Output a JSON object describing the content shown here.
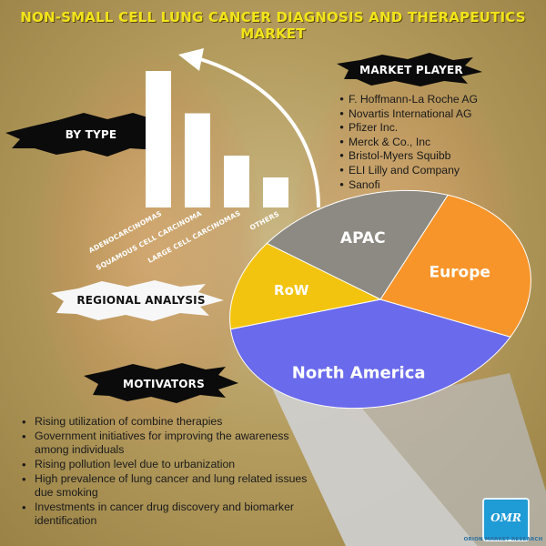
{
  "title": "NON-SMALL CELL LUNG CANCER DIAGNOSIS AND THERAPEUTICS MARKET",
  "sections": {
    "by_type": "BY TYPE",
    "market_player": "MARKET PLAYER",
    "regional_analysis": "REGIONAL ANALYSIS",
    "motivators": "MOTIVATORS"
  },
  "market_players": [
    "F. Hoffmann-La Roche AG",
    "Novartis International AG",
    "Pfizer Inc.",
    "Merck & Co., Inc",
    "Bristol-Myers Squibb",
    "ELI Lilly and Company",
    "Sanofi"
  ],
  "motivators": [
    "Rising utilization of combine therapies",
    "Government initiatives for improving the awareness among individuals",
    "Rising pollution level due to urbanization",
    "High prevalence of lung cancer and lung related issues due smoking",
    "Investments in cancer drug discovery and biomarker identification"
  ],
  "chart_data": [
    {
      "type": "bar",
      "categories": [
        "ADENOCARCINOMAS",
        "SQUAMOUS CELL CARCINOMA",
        "LARGE CELL CARCINOMAS",
        "OTHERS"
      ],
      "values": [
        100,
        69,
        38,
        22
      ],
      "title": "BY TYPE",
      "color": "#ffffff"
    },
    {
      "type": "pie",
      "title": "REGIONAL ANALYSIS",
      "labels": [
        "North America",
        "Europe",
        "APAC",
        "RoW"
      ],
      "values": [
        40,
        26,
        21,
        13
      ],
      "colors": [
        "#6a6aec",
        "#f7952a",
        "#8d8a83",
        "#f3c40f"
      ]
    }
  ],
  "logo": {
    "mark": "OMR",
    "caption": "ORION MARKET RESEARCH",
    "color": "#1f9bd6"
  }
}
